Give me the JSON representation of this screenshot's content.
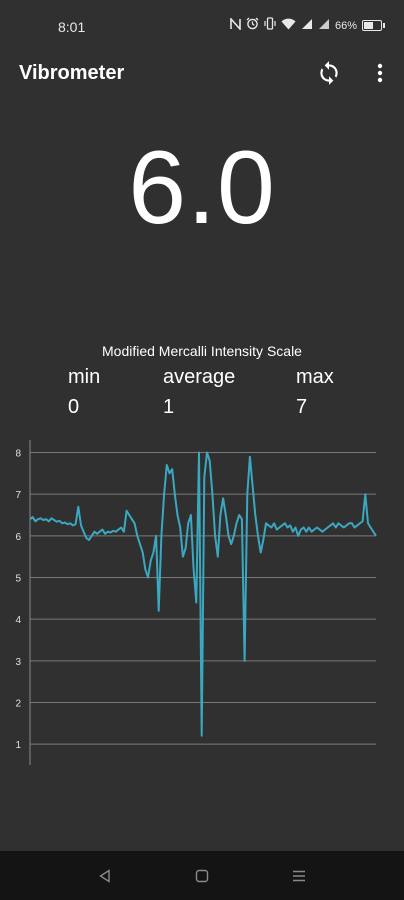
{
  "status_bar": {
    "time": "8:01",
    "indicators": [
      "nfc-icon",
      "alarm-icon",
      "vibrate-icon",
      "wifi-icon",
      "signal-icon",
      "signal-icon"
    ],
    "battery_label": "66%",
    "battery_level": 0.66
  },
  "app_bar": {
    "title": "Vibrometer",
    "refresh_icon": "refresh-icon",
    "menu_icon": "more-vert-icon"
  },
  "reading": {
    "value": "6.0"
  },
  "scale": {
    "title": "Modified Mercalli Intensity Scale",
    "min_label": "min",
    "min_value": "0",
    "average_label": "average",
    "average_value": "1",
    "max_label": "max",
    "max_value": "7"
  },
  "chart_data": {
    "type": "line",
    "title": "",
    "xlabel": "",
    "ylabel": "",
    "y_ticks": [
      "1",
      "2",
      "3",
      "4",
      "5",
      "6",
      "7",
      "8"
    ],
    "ylim": [
      0.5,
      8.3
    ],
    "grid": true,
    "line_color": "#3aa8c1",
    "series": [
      {
        "values": [
          6.4,
          6.45,
          6.35,
          6.4,
          6.42,
          6.38,
          6.4,
          6.35,
          6.42,
          6.38,
          6.34,
          6.36,
          6.3,
          6.32,
          6.28,
          6.3,
          6.25,
          6.28,
          6.7,
          6.25,
          6.1,
          5.95,
          5.9,
          6.0,
          6.1,
          6.05,
          6.1,
          6.15,
          6.05,
          6.1,
          6.08,
          6.12,
          6.1,
          6.15,
          6.2,
          6.1,
          6.6,
          6.5,
          6.4,
          6.3,
          6.0,
          5.8,
          5.6,
          5.2,
          5.0,
          5.4,
          5.6,
          6.0,
          4.2,
          6.0,
          7.0,
          7.7,
          7.5,
          7.6,
          7.0,
          6.5,
          6.2,
          5.5,
          5.7,
          6.3,
          6.5,
          5.2,
          4.4,
          8.0,
          1.2,
          7.4,
          8.0,
          7.8,
          7.0,
          6.0,
          5.5,
          6.5,
          6.9,
          6.5,
          6.0,
          5.8,
          6.0,
          6.3,
          6.5,
          6.4,
          3.0,
          7.0,
          7.9,
          7.2,
          6.5,
          6.0,
          5.6,
          5.9,
          6.3,
          6.25,
          6.2,
          6.3,
          6.15,
          6.2,
          6.25,
          6.3,
          6.2,
          6.25,
          6.1,
          6.2,
          6.0,
          6.15,
          6.2,
          6.1,
          6.2,
          6.1,
          6.15,
          6.2,
          6.15,
          6.1,
          6.15,
          6.2,
          6.25,
          6.3,
          6.2,
          6.3,
          6.25,
          6.2,
          6.25,
          6.3,
          6.3,
          6.2,
          6.25,
          6.3,
          6.35,
          7.0,
          6.3,
          6.2,
          6.1,
          6.0
        ]
      }
    ]
  },
  "nav_bar": {
    "back_icon": "back-triangle-icon",
    "home_icon": "home-square-icon",
    "recents_icon": "recents-menu-icon"
  }
}
